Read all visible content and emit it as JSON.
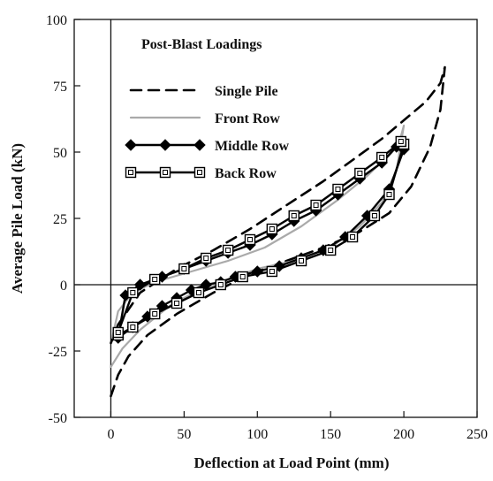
{
  "chart_data": {
    "type": "line",
    "title": "",
    "xlabel": "Deflection at Load Point (mm)",
    "ylabel": "Average Pile Load (kN)",
    "xlim": [
      -25,
      250
    ],
    "ylim": [
      -50,
      100
    ],
    "xticks": [
      0,
      50,
      100,
      150,
      200,
      250
    ],
    "yticks": [
      -50,
      -25,
      0,
      25,
      50,
      75,
      100
    ],
    "grid": false,
    "legend": {
      "title": "Post-Blast Loadings",
      "placement": "top-left"
    },
    "series": [
      {
        "name": "Single Pile",
        "color": "#000000",
        "dash": "dashed",
        "marker": "none",
        "x": [
          0,
          5,
          12,
          25,
          45,
          70,
          95,
          120,
          145,
          170,
          190,
          205,
          218,
          225,
          228,
          225,
          215,
          200,
          185,
          165,
          145,
          120,
          95,
          70,
          45,
          20,
          5,
          0
        ],
        "y": [
          -42,
          -34,
          -27,
          -19,
          -11,
          -3,
          4,
          9,
          14,
          20,
          27,
          37,
          52,
          66,
          82,
          76,
          69,
          62,
          55,
          47,
          39,
          30,
          21,
          13,
          6,
          -3,
          -15,
          -22
        ]
      },
      {
        "name": "Front Row",
        "color": "#aaaaaa",
        "dash": "solid",
        "marker": "none",
        "x": [
          0,
          8,
          20,
          40,
          60,
          80,
          100,
          125,
          150,
          170,
          185,
          195,
          200,
          198,
          190,
          175,
          155,
          130,
          105,
          80,
          55,
          30,
          15,
          5,
          1
        ],
        "y": [
          -31,
          -24,
          -17,
          -8,
          -2,
          2,
          6,
          9,
          14,
          22,
          31,
          43,
          60,
          56,
          49,
          41,
          32,
          22,
          14,
          9,
          5,
          1,
          -3,
          -10,
          -20
        ]
      },
      {
        "name": "Middle Row",
        "color": "#000000",
        "dash": "solid",
        "marker": "diamond",
        "x": [
          5,
          15,
          25,
          35,
          45,
          55,
          65,
          75,
          85,
          100,
          115,
          130,
          145,
          160,
          175,
          190,
          200,
          195,
          185,
          170,
          155,
          140,
          125,
          110,
          95,
          80,
          65,
          50,
          35,
          20,
          10,
          5
        ],
        "y": [
          -20,
          -16,
          -12,
          -8,
          -5,
          -2,
          0,
          1,
          3,
          5,
          7,
          10,
          13,
          18,
          26,
          36,
          51,
          52,
          46,
          40,
          34,
          28,
          24,
          19,
          15,
          12,
          9,
          6,
          3,
          0,
          -4,
          -20
        ]
      },
      {
        "name": "Back Row",
        "color": "#000000",
        "dash": "solid",
        "marker": "square",
        "x": [
          5,
          15,
          30,
          45,
          60,
          75,
          90,
          110,
          130,
          150,
          165,
          180,
          190,
          200,
          198,
          185,
          170,
          155,
          140,
          125,
          110,
          95,
          80,
          65,
          50,
          30,
          15,
          5
        ],
        "y": [
          -19,
          -16,
          -11,
          -7,
          -3,
          0,
          3,
          5,
          9,
          13,
          18,
          26,
          34,
          53,
          54,
          48,
          42,
          36,
          30,
          26,
          21,
          17,
          13,
          10,
          6,
          2,
          -3,
          -18
        ]
      }
    ]
  }
}
